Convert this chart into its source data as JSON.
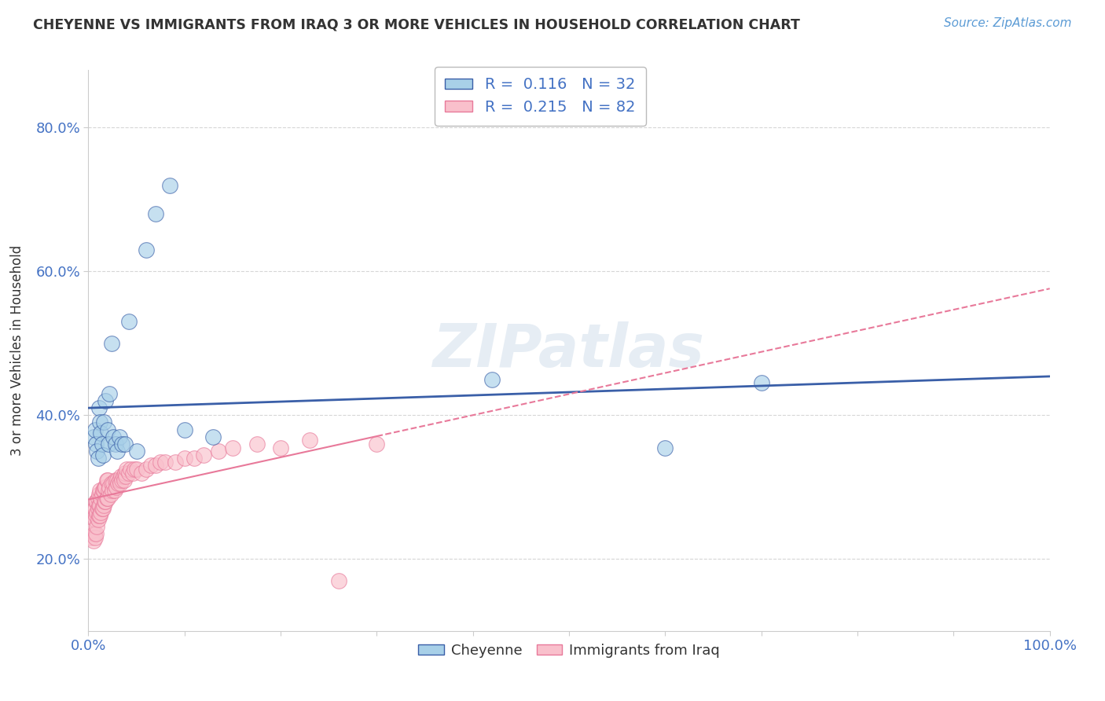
{
  "title": "CHEYENNE VS IMMIGRANTS FROM IRAQ 3 OR MORE VEHICLES IN HOUSEHOLD CORRELATION CHART",
  "source": "Source: ZipAtlas.com",
  "ylabel": "3 or more Vehicles in Household",
  "xlim": [
    0.0,
    1.0
  ],
  "ylim": [
    0.1,
    0.88
  ],
  "xticks": [
    0.0,
    0.1,
    0.2,
    0.3,
    0.4,
    0.5,
    0.6,
    0.7,
    0.8,
    0.9,
    1.0
  ],
  "xticklabels": [
    "0.0%",
    "",
    "",
    "",
    "",
    "",
    "",
    "",
    "",
    "",
    "100.0%"
  ],
  "yticks": [
    0.2,
    0.4,
    0.6,
    0.8
  ],
  "yticklabels": [
    "20.0%",
    "40.0%",
    "60.0%",
    "80.0%"
  ],
  "legend_r1": "R =  0.116",
  "legend_n1": "N = 32",
  "legend_r2": "R =  0.215",
  "legend_n2": "N = 82",
  "cheyenne_color": "#A8D0E8",
  "iraq_color": "#F9C0CC",
  "line_cheyenne_color": "#3A5FA8",
  "line_iraq_color": "#E8799A",
  "background_color": "#FFFFFF",
  "grid_color": "#CCCCCC",
  "cheyenne_x": [
    0.005,
    0.007,
    0.008,
    0.009,
    0.01,
    0.011,
    0.012,
    0.013,
    0.014,
    0.015,
    0.016,
    0.018,
    0.02,
    0.021,
    0.022,
    0.024,
    0.026,
    0.028,
    0.03,
    0.032,
    0.035,
    0.038,
    0.042,
    0.05,
    0.06,
    0.07,
    0.085,
    0.1,
    0.13,
    0.42,
    0.6,
    0.7
  ],
  "cheyenne_y": [
    0.37,
    0.38,
    0.36,
    0.35,
    0.34,
    0.41,
    0.39,
    0.375,
    0.36,
    0.345,
    0.39,
    0.42,
    0.38,
    0.36,
    0.43,
    0.5,
    0.37,
    0.36,
    0.35,
    0.37,
    0.36,
    0.36,
    0.53,
    0.35,
    0.63,
    0.68,
    0.72,
    0.38,
    0.37,
    0.45,
    0.355,
    0.445
  ],
  "iraq_x": [
    0.003,
    0.004,
    0.005,
    0.005,
    0.006,
    0.006,
    0.007,
    0.007,
    0.007,
    0.008,
    0.008,
    0.008,
    0.009,
    0.009,
    0.009,
    0.01,
    0.01,
    0.01,
    0.011,
    0.011,
    0.011,
    0.012,
    0.012,
    0.012,
    0.013,
    0.013,
    0.014,
    0.014,
    0.015,
    0.015,
    0.016,
    0.016,
    0.017,
    0.017,
    0.018,
    0.018,
    0.019,
    0.019,
    0.02,
    0.02,
    0.021,
    0.022,
    0.023,
    0.024,
    0.025,
    0.026,
    0.027,
    0.028,
    0.029,
    0.03,
    0.031,
    0.032,
    0.033,
    0.034,
    0.035,
    0.036,
    0.037,
    0.038,
    0.039,
    0.04,
    0.042,
    0.044,
    0.046,
    0.048,
    0.05,
    0.055,
    0.06,
    0.065,
    0.07,
    0.075,
    0.08,
    0.09,
    0.1,
    0.11,
    0.12,
    0.135,
    0.15,
    0.175,
    0.2,
    0.23,
    0.26,
    0.3
  ],
  "iraq_y": [
    0.23,
    0.24,
    0.225,
    0.26,
    0.235,
    0.27,
    0.23,
    0.255,
    0.27,
    0.235,
    0.26,
    0.28,
    0.245,
    0.265,
    0.28,
    0.255,
    0.27,
    0.285,
    0.26,
    0.275,
    0.29,
    0.26,
    0.275,
    0.295,
    0.265,
    0.285,
    0.27,
    0.29,
    0.27,
    0.295,
    0.275,
    0.295,
    0.28,
    0.3,
    0.28,
    0.3,
    0.285,
    0.31,
    0.285,
    0.31,
    0.295,
    0.3,
    0.29,
    0.305,
    0.295,
    0.305,
    0.295,
    0.31,
    0.3,
    0.31,
    0.305,
    0.31,
    0.305,
    0.315,
    0.31,
    0.315,
    0.31,
    0.32,
    0.315,
    0.325,
    0.32,
    0.325,
    0.32,
    0.325,
    0.325,
    0.32,
    0.325,
    0.33,
    0.33,
    0.335,
    0.335,
    0.335,
    0.34,
    0.34,
    0.345,
    0.35,
    0.355,
    0.36,
    0.355,
    0.365,
    0.17,
    0.36
  ]
}
